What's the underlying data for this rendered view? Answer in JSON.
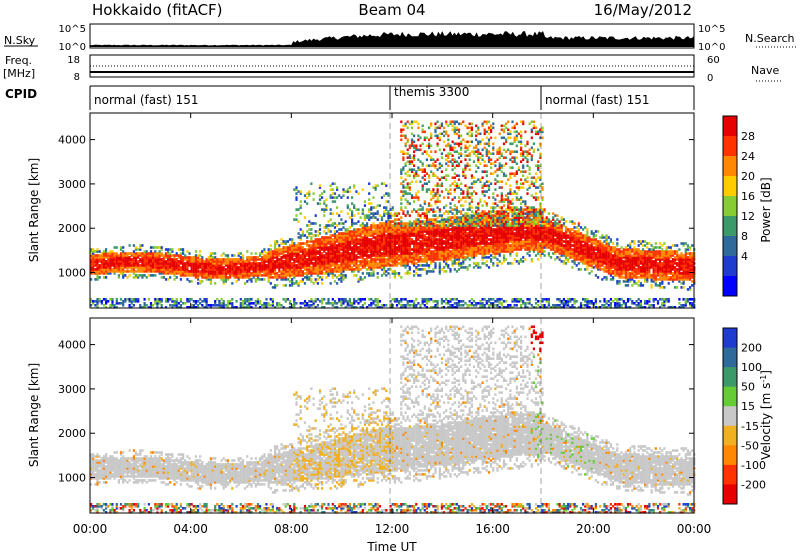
{
  "header": {
    "station": "Hokkaido (fitACF)",
    "beam": "Beam 04",
    "date": "16/May/2012"
  },
  "strip1": {
    "left_label": "N.Sky",
    "left_top": "10^5",
    "left_bottom": "10^0",
    "right_top": "10^5",
    "right_bottom": "10^0",
    "right_label": "N.Search"
  },
  "strip2": {
    "left_label_1": "Freq.",
    "left_label_2": "[MHz]",
    "left_top": "18",
    "left_bottom": "8",
    "right_top": "60",
    "right_bottom": "0",
    "right_label": "Nave"
  },
  "cpid": {
    "label": "CPID",
    "segments": [
      {
        "text": "normal (fast) 151",
        "start_h": 0,
        "end_h": 12
      },
      {
        "text": "themis 3300",
        "start_h": 12,
        "end_h": 18
      },
      {
        "text": "normal (fast) 151",
        "start_h": 18,
        "end_h": 24
      }
    ]
  },
  "chart_data": [
    {
      "type": "heatmap",
      "name": "power-panel",
      "ylabel": "Slant Range [km]",
      "ylim": [
        200,
        4600
      ],
      "y_ticks": [
        "1000",
        "2000",
        "3000",
        "4000"
      ],
      "colorbar_label": "Power [dB]",
      "colorbar_ticks": [
        "28",
        "24",
        "20",
        "16",
        "12",
        "8",
        "4"
      ],
      "colorbar_colors": [
        "#e60000",
        "#ff3300",
        "#ff8800",
        "#ffcc00",
        "#88cc33",
        "#3c9a6a",
        "#2e6a9a",
        "#1f3cd0",
        "#0000ff"
      ]
    },
    {
      "type": "heatmap",
      "name": "velocity-panel",
      "ylabel": "Slant Range [km]",
      "ylim": [
        200,
        4600
      ],
      "y_ticks": [
        "1000",
        "2000",
        "3000",
        "4000"
      ],
      "colorbar_label": "Velocity [m s",
      "colorbar_label_sup": "-1",
      "colorbar_label_end": "]",
      "colorbar_ticks": [
        "200",
        "100",
        "50",
        "15",
        "-15",
        "-50",
        "-100",
        "-200"
      ],
      "colorbar_colors": [
        "#1f3cd0",
        "#2e6a9a",
        "#3c9a6a",
        "#66cc33",
        "#c8c8c8",
        "#f0b020",
        "#ff8800",
        "#ff3300",
        "#e60000"
      ]
    }
  ],
  "x_axis": {
    "label": "Time UT",
    "ticks": [
      "00:00",
      "04:00",
      "08:00",
      "12:00",
      "16:00",
      "20:00",
      "00:00"
    ],
    "xlim_hours": [
      0,
      24
    ]
  }
}
